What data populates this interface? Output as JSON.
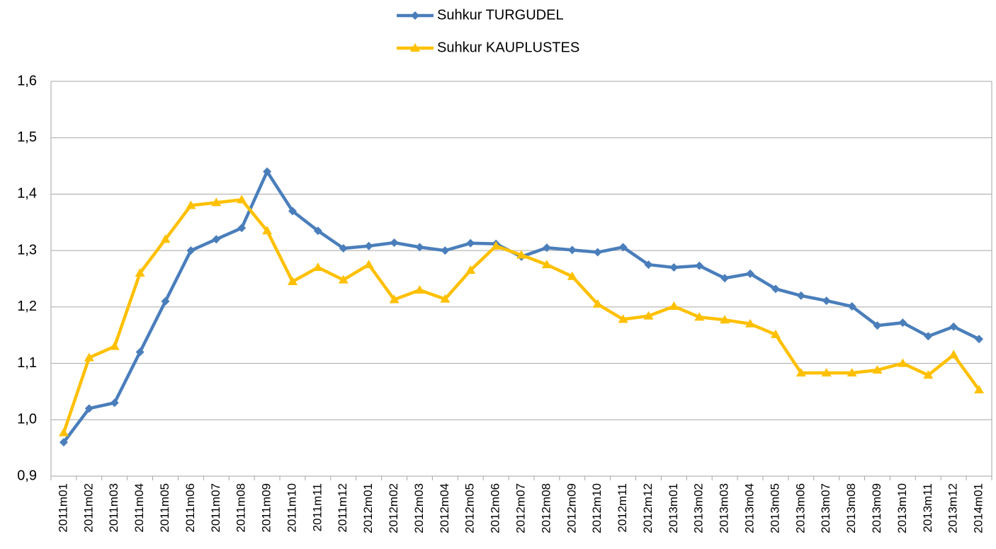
{
  "chart_data": {
    "type": "line",
    "categories": [
      "2011m01",
      "2011m02",
      "2011m03",
      "2011m04",
      "2011m05",
      "2011m06",
      "2011m07",
      "2011m08",
      "2011m09",
      "2011m10",
      "2011m11",
      "2011m12",
      "2012m01",
      "2012m02",
      "2012m03",
      "2012m04",
      "2012m05",
      "2012m06",
      "2012m07",
      "2012m08",
      "2012m09",
      "2012m10",
      "2012m11",
      "2012m12",
      "2013m01",
      "2013m02",
      "2013m03",
      "2013m04",
      "2013m05",
      "2013m06",
      "2013m07",
      "2013m08",
      "2013m09",
      "2013m10",
      "2013m11",
      "2013m12",
      "2014m01"
    ],
    "series": [
      {
        "name": "Suhkur TURGUDEL",
        "color": "#4a7ebb",
        "marker": "diamond",
        "values": [
          0.96,
          1.02,
          1.03,
          1.12,
          1.21,
          1.3,
          1.32,
          1.34,
          1.44,
          1.37,
          1.335,
          1.304,
          1.308,
          1.314,
          1.306,
          1.3,
          1.313,
          1.312,
          1.289,
          1.305,
          1.301,
          1.297,
          1.306,
          1.275,
          1.27,
          1.273,
          1.251,
          1.259,
          1.232,
          1.22,
          1.211,
          1.201,
          1.167,
          1.172,
          1.148,
          1.165,
          1.143
        ]
      },
      {
        "name": "Suhkur KAUPLUSTES",
        "color": "#ffc000",
        "marker": "triangle",
        "values": [
          0.977,
          1.11,
          1.13,
          1.26,
          1.32,
          1.38,
          1.385,
          1.39,
          1.335,
          1.245,
          1.27,
          1.248,
          1.275,
          1.213,
          1.23,
          1.214,
          1.265,
          1.308,
          1.292,
          1.275,
          1.254,
          1.205,
          1.178,
          1.184,
          1.201,
          1.182,
          1.177,
          1.17,
          1.151,
          1.083,
          1.083,
          1.083,
          1.088,
          1.1,
          1.079,
          1.115,
          1.053
        ]
      }
    ],
    "ylim": [
      0.9,
      1.6
    ],
    "yticks": [
      {
        "value": 0.9,
        "label": "0,9"
      },
      {
        "value": 1.0,
        "label": "1,0"
      },
      {
        "value": 1.1,
        "label": "1,1"
      },
      {
        "value": 1.2,
        "label": "1,2"
      },
      {
        "value": 1.3,
        "label": "1,3"
      },
      {
        "value": 1.4,
        "label": "1,4"
      },
      {
        "value": 1.5,
        "label": "1,5"
      },
      {
        "value": 1.6,
        "label": "1,6"
      }
    ],
    "grid": true,
    "legend": "top"
  }
}
